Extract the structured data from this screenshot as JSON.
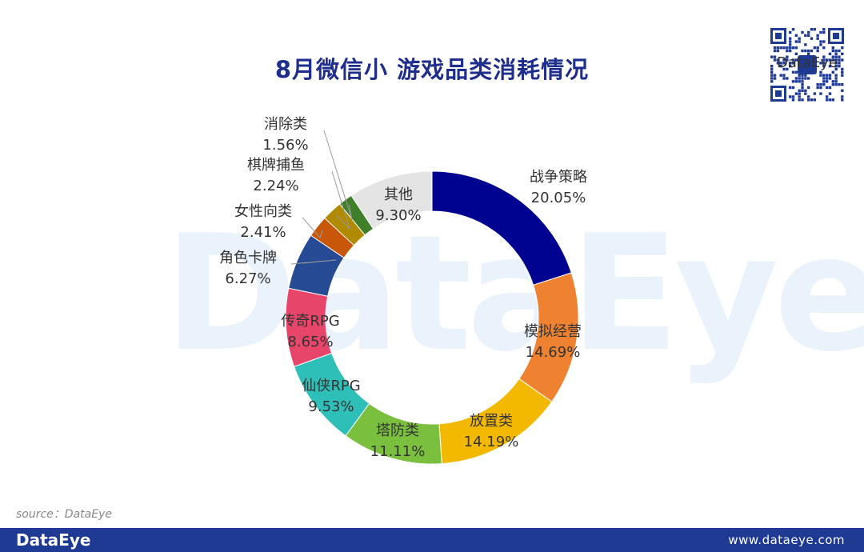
{
  "title": "8月微信小 游戏品类消耗情况",
  "watermark": "DataEye",
  "source": "source：DataEye",
  "footer": {
    "brand": "DataEye",
    "url": "www.dataeye.com"
  },
  "qr": {
    "icon": "qr-code-icon",
    "center_text": "DataEye"
  },
  "chart_data": {
    "type": "pie",
    "donut": true,
    "start_angle_deg": 0,
    "direction": "clockwise",
    "slices": [
      {
        "label": "战争策略",
        "value": 20.05,
        "display": "20.05%",
        "color": "#00038f"
      },
      {
        "label": "模拟经营",
        "value": 14.69,
        "display": "14.69%",
        "color": "#ee8230"
      },
      {
        "label": "放置类",
        "value": 14.19,
        "display": "14.19%",
        "color": "#f2b900"
      },
      {
        "label": "塔防类",
        "value": 11.11,
        "display": "11.11%",
        "color": "#7bbf3f"
      },
      {
        "label": "仙侠RPG",
        "value": 9.53,
        "display": "9.53%",
        "color": "#2ebfb8"
      },
      {
        "label": "传奇RPG",
        "value": 8.65,
        "display": "8.65%",
        "color": "#e8456a"
      },
      {
        "label": "角色卡牌",
        "value": 6.27,
        "display": "6.27%",
        "color": "#264a93"
      },
      {
        "label": "女性向类",
        "value": 2.41,
        "display": "2.41%",
        "color": "#c9570a"
      },
      {
        "label": "棋牌捕鱼",
        "value": 2.24,
        "display": "2.24%",
        "color": "#b08a00"
      },
      {
        "label": "消除类",
        "value": 1.56,
        "display": "1.56%",
        "color": "#3f7f2a"
      },
      {
        "label": "其他",
        "value": 9.3,
        "display": "9.30%",
        "color": "#e4e4e4"
      }
    ],
    "legend": "none"
  }
}
